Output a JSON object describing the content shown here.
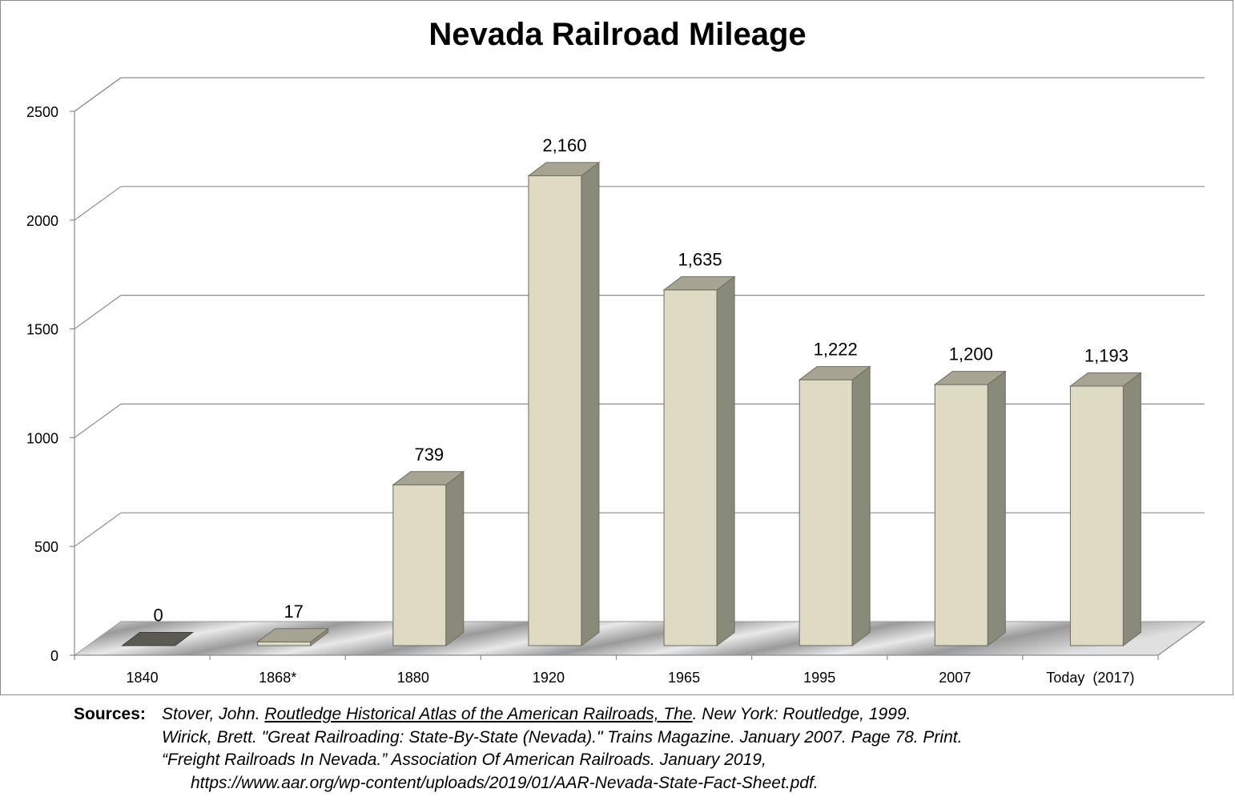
{
  "chart_data": {
    "type": "bar",
    "title": "Nevada Railroad Mileage",
    "categories": [
      "1840",
      "1868*",
      "1880",
      "1920",
      "1965",
      "1995",
      "2007",
      "Today  (2017)"
    ],
    "values": [
      0,
      17,
      739,
      2160,
      1635,
      1222,
      1200,
      1193
    ],
    "data_labels": [
      "0",
      "17",
      "739",
      "2,160",
      "1,635",
      "1,222",
      "1,200",
      "1,193"
    ],
    "ylim": [
      0,
      2500
    ],
    "yticks": [
      0,
      500,
      1000,
      1500,
      2000,
      2500
    ],
    "grid": true,
    "three_d": true,
    "colors": {
      "bar_front": "#dedac4",
      "bar_side": "#8a8a7b",
      "bar_top": "#a8a493",
      "zero_bar": "#5a5a52",
      "gridline": "#8c8c8c",
      "floor": "#b5b5b5"
    }
  },
  "sources": {
    "heading": "Sources:",
    "line1_pre": "Stover, John. ",
    "line1_title": "Routledge Historical Atlas of the American Railroads, The",
    "line1_post": ". New York: Routledge, 1999.",
    "line2": "Wirick, Brett. \"Great Railroading: State-By-State (Nevada).\" Trains Magazine. January 2007. Page 78. Print.",
    "line3": "“Freight Railroads In Nevada.” Association Of American Railroads. January 2019,",
    "line4": "https://www.aar.org/wp-content/uploads/2019/01/AAR-Nevada-State-Fact-Sheet.pdf."
  }
}
